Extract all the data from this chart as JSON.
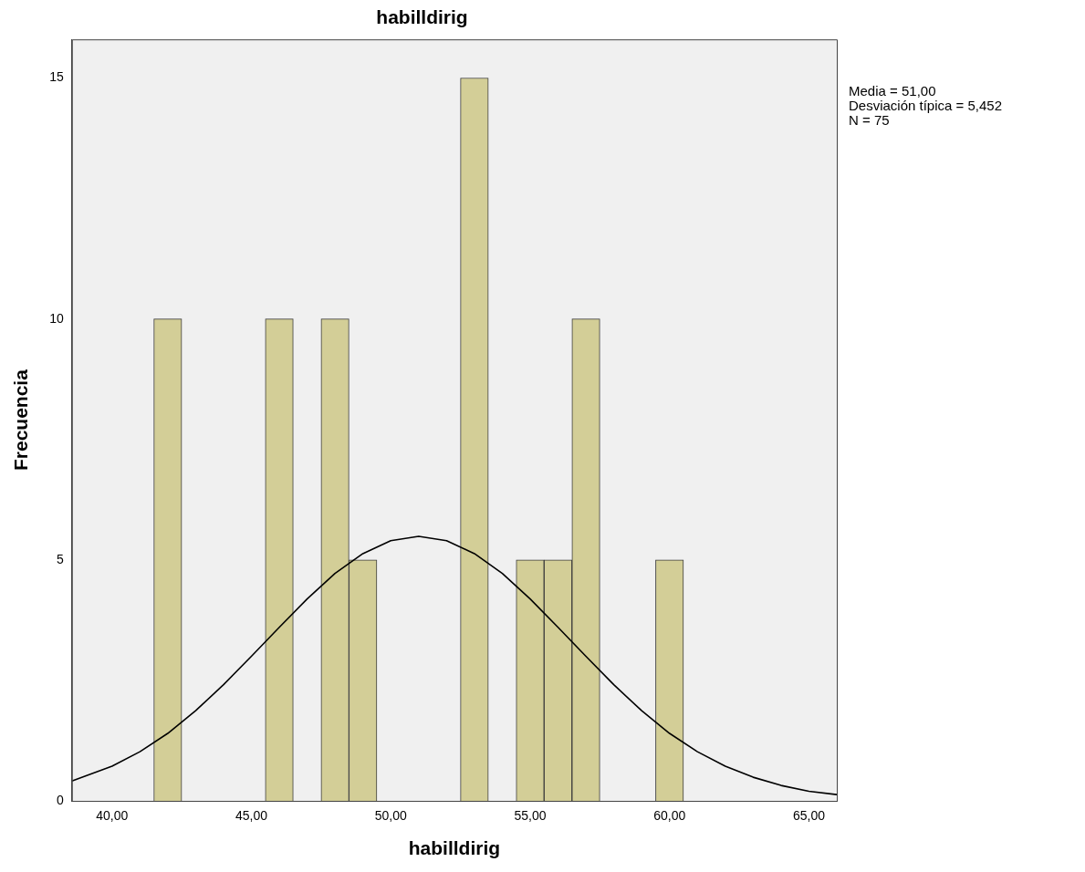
{
  "chart_data": {
    "type": "histogram",
    "title": "habilldirig",
    "xlabel": "habilldirig",
    "ylabel": "Frecuencia",
    "annotations": [
      "Media = 51,00",
      "Desviación típica = 5,452",
      "N = 75"
    ],
    "series": [
      {
        "type": "histogram",
        "color": "#d3ce97",
        "bins": [
          41.5,
          42.5,
          43.5,
          44.5,
          45.5,
          46.5,
          47.5,
          48.5,
          49.5,
          50.5,
          51.5,
          52.5,
          53.5,
          54.5,
          55.5,
          56.5,
          57.5,
          58.5,
          59.5,
          60.5
        ],
        "values": [
          10,
          0,
          0,
          0,
          10,
          0,
          10,
          5,
          0,
          0,
          0,
          15,
          0,
          5,
          5,
          10,
          0,
          0,
          5
        ]
      },
      {
        "type": "line",
        "color": "#000000",
        "x": [
          38.56,
          40,
          41,
          42,
          43,
          44,
          45,
          46,
          47,
          48,
          49,
          50,
          51,
          52,
          53,
          54,
          55,
          56,
          57,
          58,
          59,
          60,
          61,
          62,
          63,
          64,
          65,
          66
        ],
        "values": [
          0.41,
          0.72,
          1.02,
          1.4,
          1.87,
          2.41,
          3.0,
          3.6,
          4.19,
          4.72,
          5.13,
          5.4,
          5.49,
          5.4,
          5.13,
          4.72,
          4.19,
          3.6,
          3.0,
          2.41,
          1.87,
          1.4,
          1.02,
          0.72,
          0.49,
          0.32,
          0.2,
          0.13
        ]
      }
    ],
    "xlim": [
      38.56,
      66.0
    ],
    "xticks": [
      {
        "value": 40,
        "label": "40,00"
      },
      {
        "value": 45,
        "label": "45,00"
      },
      {
        "value": 50,
        "label": "50,00"
      },
      {
        "value": 55,
        "label": "55,00"
      },
      {
        "value": 60,
        "label": "60,00"
      },
      {
        "value": 65,
        "label": "65,00"
      }
    ],
    "ylim": [
      0,
      15.8
    ],
    "yticks": [
      0,
      5,
      10,
      15
    ],
    "grid": false,
    "legend": false,
    "marker": "none",
    "line_style": "solid"
  }
}
